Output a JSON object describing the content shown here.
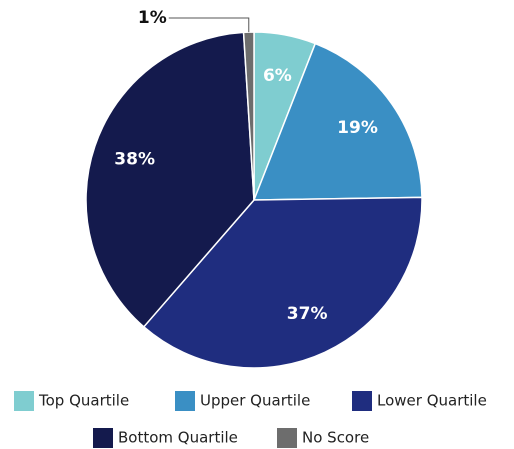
{
  "chart_data": {
    "type": "pie",
    "categories": [
      "Top Quartile",
      "Upper Quartile",
      "Lower Quartile",
      "Bottom Quartile",
      "No Score"
    ],
    "values": [
      6,
      19,
      37,
      38,
      1
    ],
    "value_labels": [
      "6%",
      "19%",
      "37%",
      "38%",
      "1%"
    ],
    "colors": [
      "#7fcdd0",
      "#3a8fc4",
      "#1f2d7f",
      "#141a4d",
      "#6d6d6d"
    ],
    "legend": "bottom"
  }
}
